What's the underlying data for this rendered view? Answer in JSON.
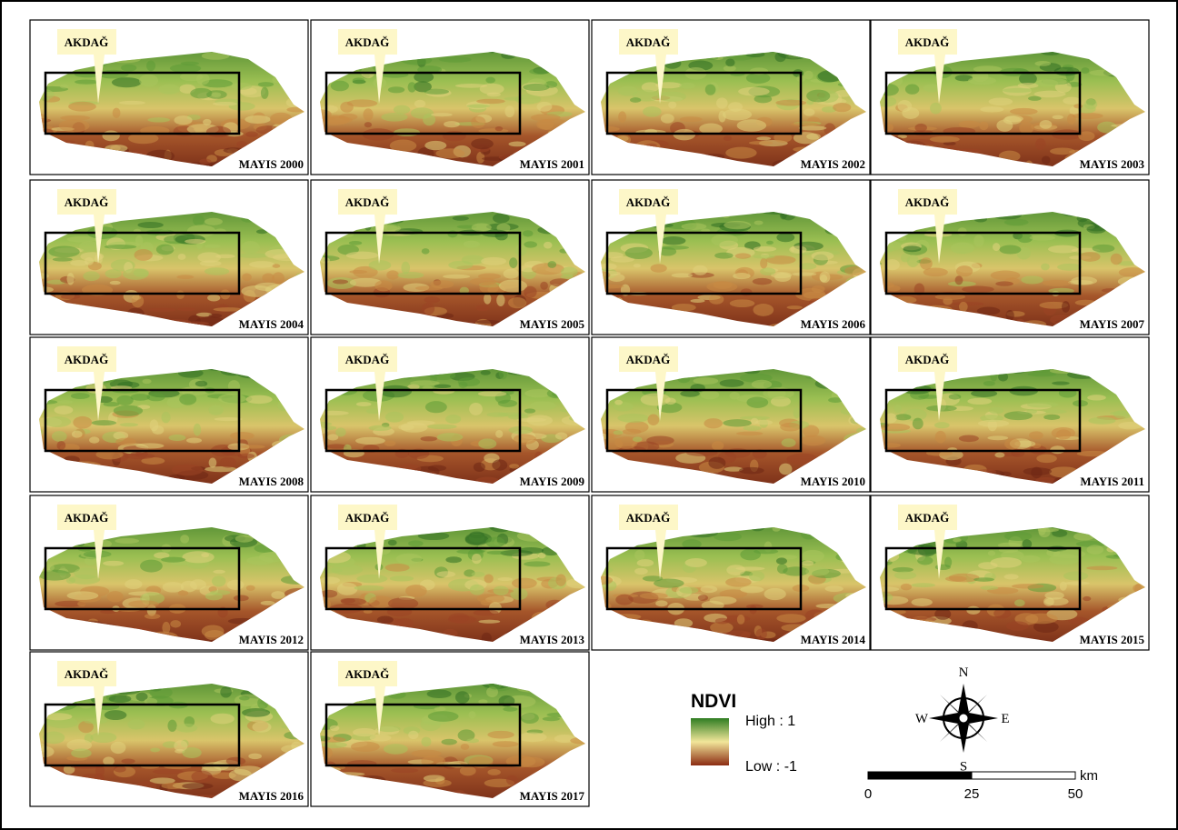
{
  "panels": [
    {
      "label": "AKDAĞ",
      "title": "MAYIS 2000"
    },
    {
      "label": "AKDAĞ",
      "title": "MAYIS 2001"
    },
    {
      "label": "AKDAĞ",
      "title": "MAYIS 2002"
    },
    {
      "label": "AKDAĞ",
      "title": "MAYIS 2003"
    },
    {
      "label": "AKDAĞ",
      "title": "MAYIS 2004"
    },
    {
      "label": "AKDAĞ",
      "title": "MAYIS 2005"
    },
    {
      "label": "AKDAĞ",
      "title": "MAYIS 2006"
    },
    {
      "label": "AKDAĞ",
      "title": "MAYIS 2007"
    },
    {
      "label": "AKDAĞ",
      "title": "MAYIS 2008"
    },
    {
      "label": "AKDAĞ",
      "title": "MAYIS 2009"
    },
    {
      "label": "AKDAĞ",
      "title": "MAYIS 2010"
    },
    {
      "label": "AKDAĞ",
      "title": "MAYIS 2011"
    },
    {
      "label": "AKDAĞ",
      "title": "MAYIS 2012"
    },
    {
      "label": "AKDAĞ",
      "title": "MAYIS 2013"
    },
    {
      "label": "AKDAĞ",
      "title": "MAYIS 2014"
    },
    {
      "label": "AKDAĞ",
      "title": "MAYIS 2015"
    },
    {
      "label": "AKDAĞ",
      "title": "MAYIS 2016"
    },
    {
      "label": "AKDAĞ",
      "title": "MAYIS 2017"
    }
  ],
  "legend": {
    "title": "NDVI",
    "high": "High : 1",
    "low": "Low : -1"
  },
  "compass": {
    "n": "N",
    "s": "S",
    "e": "E",
    "w": "W"
  },
  "scale_bar": {
    "unit": "km",
    "ticks": [
      0,
      25,
      50
    ]
  }
}
